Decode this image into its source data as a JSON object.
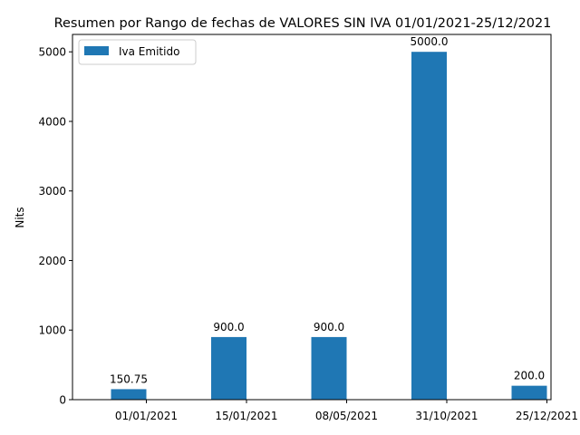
{
  "chart_data": {
    "type": "bar",
    "title": "Resumen por Rango de fechas de VALORES SIN IVA 01/01/2021-25/12/2021",
    "xlabel": "",
    "ylabel": "Nits",
    "categories": [
      "01/01/2021",
      "15/01/2021",
      "08/05/2021",
      "31/10/2021",
      "25/12/2021"
    ],
    "series": [
      {
        "name": "Iva Emitido",
        "values": [
          150.75,
          900.0,
          900.0,
          5000.0,
          200.0
        ],
        "data_labels": [
          "150.75",
          "900.0",
          "900.0",
          "5000.0",
          "200.0"
        ],
        "color": "#1f77b4"
      }
    ],
    "ylim": [
      0,
      5250
    ],
    "yticks": [
      0,
      1000,
      2000,
      3000,
      4000,
      5000
    ],
    "grid": false,
    "legend_position": "top-left"
  }
}
